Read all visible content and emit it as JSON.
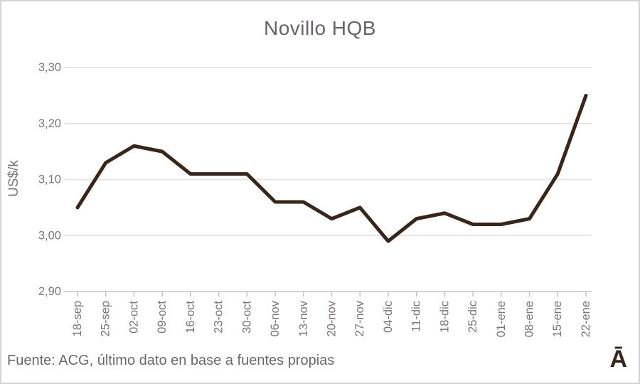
{
  "chart_data": {
    "type": "line",
    "title": "Novillo HQB",
    "ylabel": "US$/k",
    "xlabel": "",
    "categories": [
      "18-sep",
      "25-sep",
      "02-oct",
      "09-oct",
      "16-oct",
      "23-oct",
      "30-oct",
      "06-nov",
      "13-nov",
      "20-nov",
      "27-nov",
      "04-dic",
      "11-dic",
      "18-dic",
      "25-dic",
      "01-ene",
      "08-ene",
      "15-ene",
      "22-ene"
    ],
    "values": [
      3.05,
      3.13,
      3.16,
      3.15,
      3.11,
      3.11,
      3.11,
      3.06,
      3.06,
      3.03,
      3.05,
      2.99,
      3.03,
      3.04,
      3.02,
      3.02,
      3.03,
      3.11,
      3.25
    ],
    "ylim": [
      2.9,
      3.3
    ],
    "yticks": [
      {
        "value": 2.9,
        "label": "2,90"
      },
      {
        "value": 3.0,
        "label": "3,00"
      },
      {
        "value": 3.1,
        "label": "3,10"
      },
      {
        "value": 3.2,
        "label": "3,20"
      },
      {
        "value": 3.3,
        "label": "3,30"
      }
    ],
    "grid": "horizontal",
    "legend": "none",
    "x_label_rotation": -90
  },
  "footer": {
    "source_text": "Fuente: ACG, último dato en base a fuentes propias",
    "logo_glyph": "Ā"
  },
  "colors": {
    "title_text": "#69616A",
    "axis_text": "#7B7378",
    "gridline": "#E3E1E3",
    "axis_line": "#C6C1C5",
    "line": "#3A2519",
    "logo": "#3A2519",
    "background": "#FFFFFF",
    "frame_border": "#D4D2D2"
  }
}
